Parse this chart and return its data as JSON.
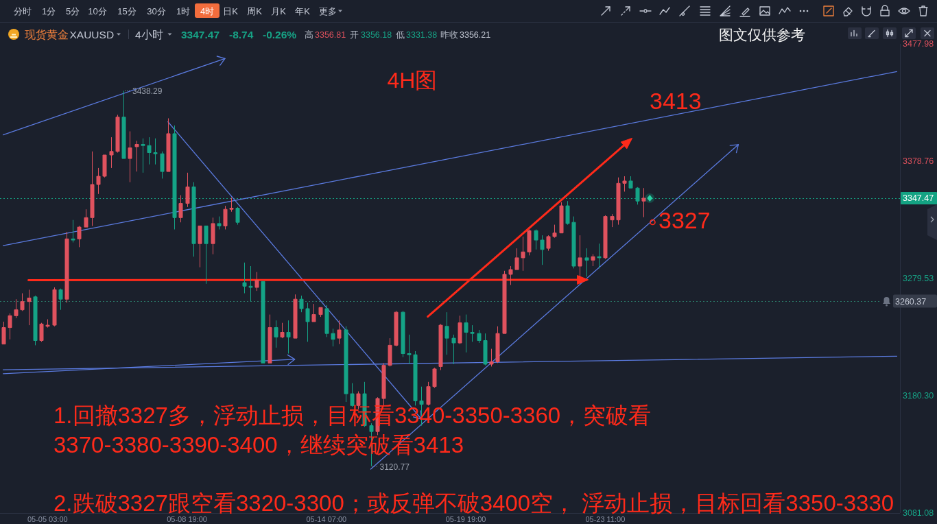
{
  "chart_data": {
    "type": "candlestick",
    "title": "现货黄金",
    "subtitle": "XAUUSD",
    "categories": [
      null,
      null,
      null,
      null,
      null,
      null,
      null,
      "05-05 03:00",
      null,
      null,
      null,
      null,
      null,
      null,
      null,
      null,
      null,
      null,
      null,
      null,
      null,
      null,
      null,
      null,
      null,
      null,
      null,
      null,
      null,
      "05-08 19:00",
      null,
      null,
      null,
      null,
      null,
      null,
      null,
      null,
      null,
      null,
      null,
      null,
      null,
      null,
      null,
      null,
      null,
      null,
      null,
      null,
      null,
      "05-14 07:00",
      null,
      null,
      null,
      null,
      null,
      null,
      null,
      null,
      null,
      null,
      null,
      null,
      null,
      null,
      null,
      null,
      null,
      null,
      null,
      null,
      null,
      "05-19 19:00",
      null,
      null,
      null,
      null,
      null,
      null,
      null,
      null,
      null,
      null,
      null,
      null,
      null,
      null,
      null,
      null,
      null,
      null,
      null,
      null,
      null,
      "05-23 11:00",
      null,
      null,
      null,
      null,
      null,
      null,
      null,
      null,
      null,
      null,
      null,
      null,
      null,
      null,
      null,
      null,
      null,
      null,
      null,
      null,
      null,
      null,
      null,
      null,
      null,
      null,
      null,
      null,
      null,
      null,
      null,
      null,
      null,
      null,
      null,
      null,
      null,
      null,
      null,
      null,
      null,
      null,
      null,
      null,
      null,
      null
    ],
    "ohlc": [
      [
        3224,
        3243,
        3224,
        3238
      ],
      [
        3238,
        3250,
        3228,
        3248
      ],
      [
        3248,
        3262,
        3246,
        3253
      ],
      [
        3253,
        3267,
        3252,
        3260
      ],
      [
        3260,
        3270,
        3240,
        3263
      ],
      [
        3264,
        3265,
        3223,
        3227
      ],
      [
        3227,
        3242,
        3226,
        3241
      ],
      [
        3239,
        3245,
        3238,
        3240
      ],
      [
        3240,
        3272,
        3239,
        3270
      ],
      [
        3270,
        3271,
        3253,
        3262
      ],
      [
        3262,
        3319,
        3259,
        3313
      ],
      [
        3313,
        3329,
        3310,
        3312
      ],
      [
        3313,
        3324,
        3306,
        3323
      ],
      [
        3323,
        3338,
        3323,
        3331
      ],
      [
        3331,
        3387,
        3324,
        3359
      ],
      [
        3359,
        3373,
        3351,
        3366
      ],
      [
        3366,
        3384,
        3365,
        3384
      ],
      [
        3384,
        3399,
        3373,
        3387
      ],
      [
        3387,
        3418,
        3386,
        3416
      ],
      [
        3416,
        3438.29,
        3381,
        3381
      ],
      [
        3381,
        3404,
        3361,
        3390
      ],
      [
        3391,
        3396,
        3370,
        3393
      ],
      [
        3393,
        3398,
        3369,
        3392
      ],
      [
        3392,
        3399,
        3376,
        3386
      ],
      [
        3386,
        3398,
        3376,
        3385
      ],
      [
        3385,
        3387,
        3364,
        3370
      ],
      [
        3370,
        3415,
        3370,
        3402
      ],
      [
        3402,
        3409,
        3321,
        3331
      ],
      [
        3331,
        3350,
        3327,
        3343
      ],
      [
        3343,
        3369,
        3340,
        3357
      ],
      [
        3357,
        3361,
        3298,
        3309
      ],
      [
        3309,
        3324,
        3289,
        3324
      ],
      [
        3324,
        3324,
        3275,
        3309
      ],
      [
        3309,
        3331,
        3300,
        3326
      ],
      [
        3326,
        3332,
        3321,
        3324
      ],
      [
        3324,
        3341,
        3321,
        3338
      ],
      [
        3338,
        3348,
        3336,
        3339
      ],
      [
        3339,
        3340,
        3325,
        3327
      ],
      [
        3276,
        3293,
        3267,
        3273
      ],
      [
        3273,
        3290,
        3260,
        3272
      ],
      [
        3272,
        3285,
        3269,
        3278
      ],
      [
        3277,
        3277,
        3208,
        3208
      ],
      [
        3208,
        3249,
        3208,
        3238
      ],
      [
        3238,
        3244,
        3221,
        3230
      ],
      [
        3230,
        3242,
        3229,
        3234
      ],
      [
        3234,
        3244,
        3216,
        3230
      ],
      [
        3229,
        3266,
        3229,
        3262
      ],
      [
        3262,
        3265,
        3251,
        3254
      ],
      [
        3254,
        3259,
        3226,
        3243
      ],
      [
        3243,
        3258,
        3243,
        3249
      ],
      [
        3249,
        3255,
        3247,
        3255
      ],
      [
        3254,
        3257,
        3230,
        3233
      ],
      [
        3233,
        3237,
        3222,
        3228
      ],
      [
        3229,
        3244,
        3224,
        3236
      ],
      [
        3236,
        3239,
        3175,
        3182
      ],
      [
        3182,
        3191,
        3171,
        3172
      ],
      [
        3172,
        3184,
        3169,
        3182
      ],
      [
        3182,
        3192,
        3154,
        3155
      ],
      [
        3155,
        3157,
        3120.77,
        3150
      ],
      [
        3150,
        3179,
        3147,
        3178
      ],
      [
        3178,
        3208,
        3172,
        3206
      ],
      [
        3206,
        3229,
        3205,
        3223
      ],
      [
        3223,
        3252,
        3222,
        3251
      ],
      [
        3251,
        3252,
        3213,
        3216
      ],
      [
        3216,
        3232,
        3207,
        3215
      ],
      [
        3215,
        3218,
        3172,
        3176
      ],
      [
        3176,
        3188,
        3155,
        3173
      ],
      [
        3173,
        3192,
        3172,
        3188
      ],
      [
        3188,
        3204,
        3187,
        3203
      ],
      [
        3205,
        3241,
        3202,
        3240
      ],
      [
        3239,
        3251,
        3215,
        3229
      ],
      [
        3229,
        3232,
        3207,
        3225
      ],
      [
        3225,
        3248,
        3224,
        3242
      ],
      [
        3242,
        3249,
        3217,
        3234
      ],
      [
        3234,
        3240,
        3226,
        3233
      ],
      [
        3233,
        3236,
        3225,
        3227
      ],
      [
        3227,
        3233,
        3206,
        3207
      ],
      [
        3207,
        3220,
        3205,
        3209
      ],
      [
        3209,
        3239,
        3208,
        3233
      ],
      [
        3233,
        3286,
        3233,
        3283
      ],
      [
        3283,
        3290,
        3274,
        3287
      ],
      [
        3287,
        3305,
        3287,
        3297
      ],
      [
        3297,
        3315,
        3286,
        3302
      ],
      [
        3302,
        3321,
        3299,
        3320
      ],
      [
        3320,
        3321,
        3304,
        3312
      ],
      [
        3312,
        3316,
        3291,
        3304
      ],
      [
        3305,
        3316,
        3303,
        3315
      ],
      [
        3315,
        3325,
        3314,
        3318
      ],
      [
        3318,
        3344,
        3318,
        3341
      ],
      [
        3341,
        3345,
        3325,
        3326
      ],
      [
        3327,
        3332,
        3288,
        3290
      ],
      [
        3290,
        3316,
        3281,
        3297
      ],
      [
        3297,
        3305,
        3281,
        3295
      ],
      [
        3295,
        3300,
        3290,
        3298
      ],
      [
        3298,
        3309,
        3288,
        3297
      ],
      [
        3297,
        3333,
        3296,
        3332
      ],
      [
        3329,
        3334,
        3323,
        3332
      ],
      [
        3329,
        3365,
        3325,
        3360
      ],
      [
        3360,
        3366,
        3353,
        3362
      ],
      [
        3362,
        3366,
        3356,
        3356
      ],
      [
        3356,
        3356.81,
        3342,
        3345
      ],
      [
        3345,
        3356,
        3331.38,
        3347.47
      ],
      null,
      null,
      null,
      null,
      null,
      null,
      null,
      null,
      null,
      null,
      null,
      null,
      null,
      null,
      null,
      null,
      null,
      null,
      null,
      null,
      null,
      null,
      null,
      null,
      null,
      null,
      null,
      null,
      null,
      null,
      null,
      null,
      null,
      null,
      null,
      null,
      null,
      null,
      null,
      null
    ],
    "ylim": [
      3081.08,
      3477.98
    ],
    "yticks": [
      3081.08,
      {
        "value": 3180.3,
        "label": "3180.30"
      },
      3279.53,
      3378.76,
      3477.98
    ],
    "series": [
      {
        "type": "line",
        "color": "#5b7be0",
        "values": [
          3401.0,
          null,
          null,
          null,
          null,
          null,
          null,
          null,
          null,
          null,
          null,
          null,
          null,
          null,
          null,
          null,
          null,
          null,
          null,
          null,
          null,
          null,
          null,
          null,
          null,
          null,
          null,
          null,
          null,
          null,
          null,
          null,
          null,
          null,
          null,
          3465.6,
          null,
          null,
          null,
          null,
          null,
          null,
          null,
          null,
          null,
          null,
          null,
          null,
          null,
          null,
          null,
          null,
          null,
          null,
          null,
          null,
          null,
          null,
          null,
          null,
          null,
          null,
          null,
          null,
          null,
          null,
          null,
          null,
          null,
          null,
          null,
          null,
          null,
          null,
          null,
          null,
          null,
          null,
          null,
          null,
          null,
          null,
          null,
          null,
          null,
          null,
          null,
          null,
          null,
          null,
          null,
          null,
          null,
          null,
          null,
          null,
          null,
          null,
          null,
          null,
          null,
          null,
          null,
          null,
          null,
          null,
          null,
          null,
          null,
          null,
          null,
          null,
          null,
          null,
          null,
          null,
          null,
          null,
          null,
          null,
          null,
          null,
          null,
          null,
          null,
          null,
          null,
          null,
          null,
          null,
          null,
          null,
          null,
          null,
          null,
          null,
          null,
          null,
          null,
          null,
          null,
          null
        ]
      },
      {
        "type": "line",
        "color": "#5b7be0",
        "values": [
          3307.3,
          null,
          null,
          null,
          null,
          null,
          null,
          null,
          null,
          null,
          null,
          null,
          null,
          null,
          null,
          null,
          null,
          null,
          null,
          null,
          null,
          null,
          null,
          null,
          null,
          null,
          null,
          null,
          null,
          null,
          null,
          null,
          null,
          null,
          null,
          null,
          null,
          null,
          null,
          null,
          null,
          null,
          null,
          null,
          null,
          null,
          null,
          null,
          null,
          null,
          null,
          null,
          null,
          null,
          null,
          null,
          null,
          null,
          null,
          null,
          null,
          null,
          null,
          null,
          null,
          null,
          null,
          null,
          null,
          null,
          null,
          null,
          null,
          null,
          null,
          null,
          null,
          null,
          null,
          null,
          null,
          null,
          null,
          null,
          null,
          null,
          null,
          null,
          null,
          null,
          null,
          null,
          null,
          null,
          null,
          null,
          null,
          null,
          null,
          null,
          null,
          null,
          null,
          null,
          null,
          null,
          null,
          null,
          null,
          null,
          null,
          null,
          null,
          null,
          null,
          null,
          null,
          null,
          null,
          null,
          null,
          null,
          null,
          null,
          null,
          null,
          null,
          null,
          null,
          null,
          null,
          null,
          null,
          null,
          null,
          null,
          null,
          null,
          null,
          null,
          null,
          3454.6
        ]
      },
      {
        "type": "line",
        "color": "#5b7be0",
        "values": [
          null,
          null,
          null,
          null,
          null,
          null,
          null,
          null,
          null,
          null,
          null,
          null,
          null,
          null,
          null,
          null,
          null,
          null,
          null,
          null,
          null,
          null,
          null,
          null,
          null,
          null,
          3412.1,
          null,
          null,
          null,
          null,
          null,
          null,
          null,
          null,
          null,
          null,
          null,
          null,
          null,
          null,
          null,
          null,
          null,
          null,
          null,
          null,
          null,
          null,
          null,
          null,
          null,
          null,
          null,
          null,
          null,
          null,
          null,
          null,
          null,
          null,
          null,
          null,
          null,
          null,
          null,
          3160.6,
          null,
          null,
          null,
          null,
          null,
          null,
          null,
          null,
          null,
          null,
          null,
          null,
          null,
          null,
          null,
          null,
          null,
          null,
          null,
          null,
          null,
          null,
          null,
          null,
          null,
          null,
          null,
          null,
          null,
          null,
          null,
          null,
          null,
          null,
          null,
          null,
          null,
          null,
          null,
          null,
          null,
          null,
          null,
          null,
          null,
          null,
          null,
          null,
          null,
          null,
          null,
          null,
          null,
          null,
          null,
          null,
          null,
          null,
          null,
          null,
          null,
          null,
          null,
          null,
          null,
          null,
          null,
          null,
          null,
          null,
          null,
          null,
          null,
          null,
          null
        ]
      },
      {
        "type": "line",
        "color": "#5b7be0",
        "values": [
          3199.0,
          null,
          null,
          null,
          null,
          null,
          null,
          null,
          null,
          null,
          null,
          null,
          null,
          null,
          null,
          null,
          null,
          null,
          null,
          null,
          null,
          null,
          null,
          null,
          null,
          null,
          null,
          null,
          null,
          null,
          null,
          null,
          null,
          null,
          null,
          null,
          null,
          null,
          null,
          null,
          null,
          null,
          null,
          null,
          null,
          null,
          3211.1,
          null,
          null,
          null,
          null,
          null,
          null,
          null,
          null,
          null,
          null,
          null,
          null,
          null,
          null,
          null,
          null,
          null,
          null,
          null,
          null,
          null,
          null,
          null,
          null,
          null,
          null,
          null,
          null,
          null,
          null,
          null,
          null,
          null,
          null,
          null,
          null,
          null,
          null,
          null,
          null,
          null,
          null,
          null,
          null,
          null,
          null,
          null,
          null,
          null,
          null,
          null,
          null,
          null,
          null,
          null,
          null,
          null,
          null,
          null,
          null,
          null,
          null,
          null,
          null,
          null,
          null,
          null,
          null,
          null,
          null,
          null,
          null,
          null,
          null,
          null,
          null,
          null,
          null,
          null,
          null,
          null,
          null,
          null,
          null,
          null,
          null,
          null,
          null,
          null,
          null,
          null,
          null,
          null,
          null,
          null
        ]
      },
      {
        "type": "line",
        "color": "#5b7be0",
        "values": [
          3202.3,
          null,
          null,
          null,
          null,
          null,
          null,
          null,
          null,
          null,
          null,
          null,
          null,
          null,
          null,
          null,
          null,
          null,
          null,
          null,
          null,
          null,
          null,
          null,
          null,
          null,
          null,
          null,
          null,
          null,
          null,
          null,
          null,
          null,
          null,
          null,
          null,
          null,
          null,
          null,
          null,
          null,
          null,
          null,
          null,
          null,
          null,
          null,
          null,
          null,
          null,
          null,
          null,
          null,
          null,
          null,
          null,
          null,
          null,
          null,
          null,
          null,
          null,
          null,
          null,
          null,
          null,
          null,
          null,
          null,
          null,
          null,
          null,
          null,
          null,
          null,
          null,
          null,
          null,
          null,
          null,
          null,
          null,
          null,
          null,
          null,
          null,
          null,
          null,
          null,
          null,
          null,
          null,
          null,
          null,
          null,
          null,
          null,
          null,
          null,
          null,
          null,
          null,
          null,
          null,
          null,
          null,
          null,
          null,
          null,
          null,
          null,
          null,
          null,
          null,
          null,
          null,
          null,
          null,
          null,
          null,
          null,
          null,
          null,
          null,
          null,
          null,
          null,
          null,
          null,
          null,
          null,
          null,
          null,
          null,
          null,
          null,
          null,
          null,
          null,
          null,
          3213.7
        ]
      },
      {
        "type": "line",
        "color": "#5b7be0",
        "values": [
          null,
          null,
          null,
          null,
          null,
          null,
          null,
          null,
          null,
          null,
          null,
          null,
          null,
          null,
          null,
          null,
          null,
          null,
          null,
          null,
          null,
          null,
          null,
          null,
          null,
          null,
          null,
          null,
          null,
          null,
          null,
          null,
          null,
          null,
          null,
          null,
          null,
          null,
          null,
          null,
          null,
          null,
          null,
          null,
          null,
          null,
          null,
          null,
          null,
          null,
          null,
          null,
          null,
          null,
          null,
          null,
          null,
          null,
          3118.2,
          null,
          null,
          null,
          null,
          null,
          null,
          null,
          null,
          null,
          null,
          null,
          null,
          null,
          null,
          null,
          null,
          null,
          null,
          null,
          null,
          null,
          null,
          null,
          null,
          null,
          null,
          null,
          null,
          null,
          null,
          null,
          null,
          null,
          null,
          null,
          null,
          null,
          null,
          null,
          null,
          null,
          null,
          null,
          null,
          null,
          null,
          null,
          null,
          null,
          null,
          null,
          null,
          null,
          null,
          null,
          null,
          null,
          3392.8,
          null,
          null,
          null,
          null,
          null,
          null,
          null,
          null,
          null,
          null,
          null,
          null,
          null,
          null,
          null,
          null,
          null,
          null,
          null,
          null,
          null,
          null,
          null,
          null,
          null
        ]
      },
      {
        "type": "line",
        "color": "#ff2a1a",
        "values": [
          null,
          null,
          null,
          null,
          3278.1,
          null,
          null,
          null,
          null,
          null,
          null,
          null,
          null,
          null,
          null,
          null,
          null,
          null,
          null,
          null,
          null,
          null,
          null,
          null,
          null,
          null,
          null,
          null,
          null,
          null,
          null,
          null,
          null,
          null,
          null,
          null,
          null,
          null,
          null,
          null,
          null,
          null,
          null,
          null,
          null,
          null,
          null,
          null,
          null,
          null,
          null,
          null,
          null,
          null,
          null,
          null,
          null,
          null,
          null,
          null,
          null,
          null,
          null,
          null,
          null,
          null,
          null,
          null,
          null,
          null,
          null,
          null,
          null,
          null,
          null,
          null,
          null,
          null,
          null,
          null,
          null,
          null,
          null,
          null,
          null,
          null,
          null,
          null,
          null,
          null,
          null,
          null,
          3278.4,
          null,
          null,
          null,
          null,
          null,
          null,
          null,
          null,
          null,
          null,
          null,
          null,
          null,
          null,
          null,
          null,
          null,
          null,
          null,
          null,
          null,
          null,
          null,
          null,
          null,
          null,
          null,
          null,
          null,
          null,
          null,
          null,
          null,
          null,
          null,
          null,
          null,
          null,
          null,
          null,
          null,
          null,
          null,
          null,
          null,
          null,
          null,
          null,
          null
        ]
      },
      {
        "type": "line",
        "color": "#ff2a1a",
        "values": [
          null,
          null,
          null,
          null,
          null,
          null,
          null,
          null,
          null,
          null,
          null,
          null,
          null,
          null,
          null,
          null,
          null,
          null,
          null,
          null,
          null,
          null,
          null,
          null,
          null,
          null,
          null,
          null,
          null,
          null,
          null,
          null,
          null,
          null,
          null,
          null,
          null,
          null,
          null,
          null,
          null,
          null,
          null,
          null,
          null,
          null,
          null,
          null,
          null,
          null,
          null,
          null,
          null,
          null,
          null,
          null,
          null,
          null,
          null,
          null,
          null,
          null,
          null,
          null,
          null,
          null,
          null,
          3247.2,
          null,
          null,
          null,
          null,
          null,
          null,
          null,
          null,
          null,
          null,
          null,
          null,
          null,
          null,
          null,
          null,
          null,
          null,
          null,
          null,
          null,
          null,
          null,
          null,
          null,
          null,
          null,
          null,
          null,
          null,
          null,
          3397.1,
          null,
          null,
          null,
          null,
          null,
          null,
          null,
          null,
          null,
          null,
          null,
          null,
          null,
          null,
          null,
          null,
          null,
          null,
          null,
          null,
          null,
          null,
          null,
          null,
          null,
          null,
          null,
          null,
          null,
          null,
          null,
          null,
          null,
          null,
          null,
          null,
          null,
          null,
          null,
          null,
          null,
          null
        ]
      }
    ],
    "ref_lines": [
      {
        "axis": "y",
        "value": 3347.47,
        "label": "3347.47",
        "color": "#14a383",
        "line_style": "dotted"
      },
      {
        "axis": "y",
        "value": 3260.37,
        "label": "3260.37",
        "color": "#2a7a68",
        "line_style": "dotted"
      }
    ],
    "annotations": [
      "4H图",
      "3438.29",
      "3120.77",
      "3413",
      "3327",
      "1.回撤3327多，浮动止损，目标看3340-3350-3360，突破看",
      "3370-3380-3390-3400，继续突破看3413",
      "2.跌破3327跟空看3320-3300；或反弹不破3400空， 浮动止损，目标回看3350-3330",
      "图文仅供参考",
      "4小时",
      "3347.47",
      "-8.74",
      "-0.26%",
      "高",
      "3356.81",
      "开",
      "3356.18",
      "低",
      "3331.38",
      "昨收",
      "3356.21",
      "分时",
      "1分",
      "5分",
      "10分",
      "15分",
      "30分",
      "1时",
      "4时",
      "日K",
      "周K",
      "月K",
      "年K",
      "更多"
    ]
  }
}
